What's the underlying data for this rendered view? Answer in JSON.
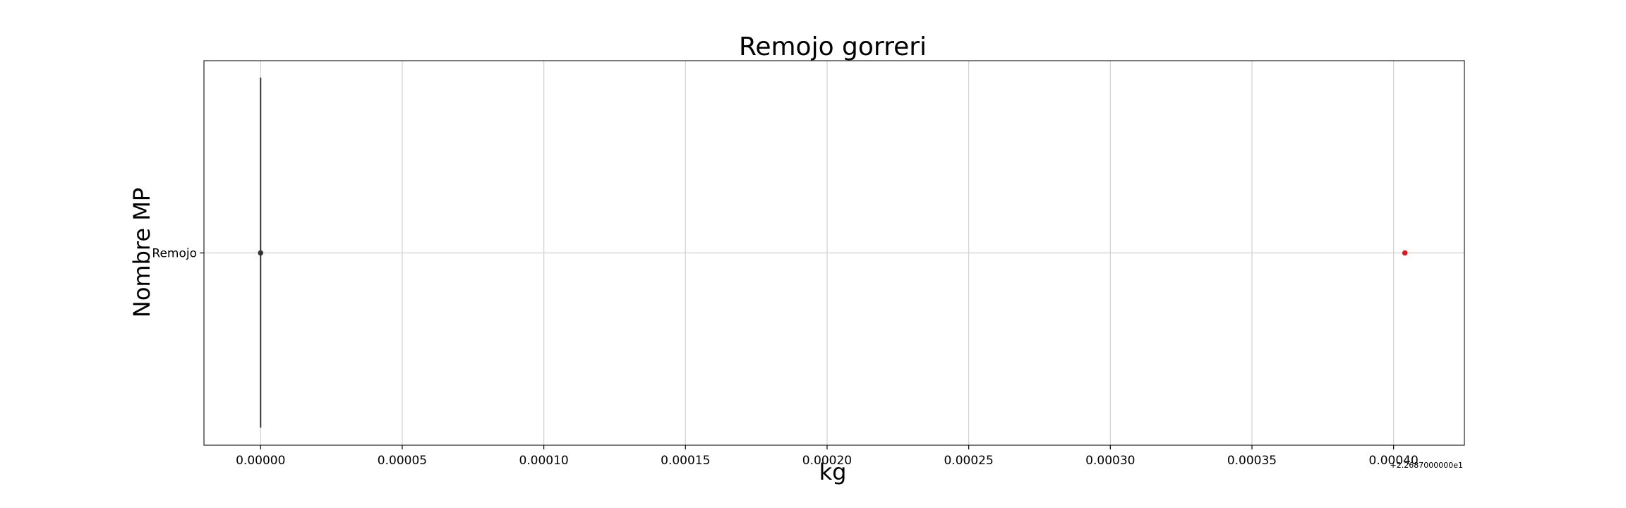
{
  "chart_data": {
    "type": "scatter",
    "title": "Remojo gorreri",
    "xlabel": "kg",
    "ylabel": "Nombre MP",
    "x_offset_label": "+2.2687000000e1",
    "x_ticks": [
      "0.00000",
      "0.00005",
      "0.00010",
      "0.00015",
      "0.00020",
      "0.00025",
      "0.00030",
      "0.00035",
      "0.00040"
    ],
    "xlim": [
      -2e-05,
      0.000425
    ],
    "categories": [
      "Remojo"
    ],
    "grid": true,
    "series": [
      {
        "color": "#333333",
        "marker_color": "#333333",
        "points": [
          {
            "category": "Remojo",
            "x": 0.0
          }
        ],
        "vertical_line": {
          "x": 0.0
        }
      },
      {
        "color": "#e8141c",
        "points": [
          {
            "category": "Remojo",
            "x": 0.000404
          }
        ]
      }
    ]
  }
}
